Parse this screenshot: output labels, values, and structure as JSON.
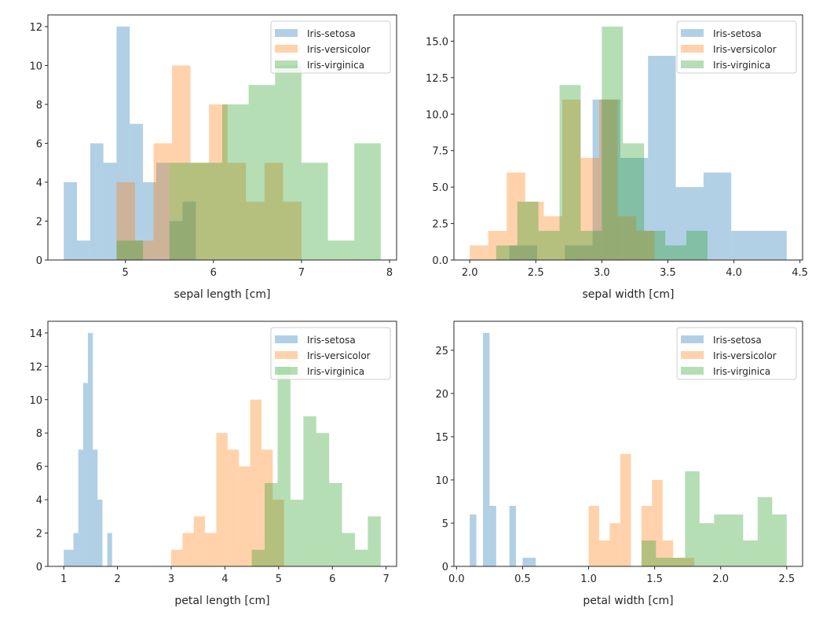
{
  "figure": {
    "bar_alpha": 0.35,
    "series_colors": {
      "Iris-setosa": "#1f77b4",
      "Iris-versicolor": "#ff7f0e",
      "Iris-virginica": "#2ca02c"
    }
  },
  "chart_data": [
    {
      "type": "bar",
      "subtype": "histogram",
      "title": "",
      "xlabel": "sepal length [cm]",
      "ylabel": "",
      "xlim": [
        4.12,
        8.08
      ],
      "ylim": [
        0,
        12.6
      ],
      "xticks": [
        5,
        6,
        7,
        8
      ],
      "xtick_labels": [
        "5",
        "6",
        "7",
        "8"
      ],
      "yticks": [
        0,
        2,
        4,
        6,
        8,
        10,
        12
      ],
      "ytick_labels": [
        "0",
        "2",
        "4",
        "6",
        "8",
        "10",
        "12"
      ],
      "grid": false,
      "legend": "top-right",
      "series": [
        {
          "name": "Iris-setosa",
          "bin_start": 4.3,
          "bin_end": 5.8,
          "counts": [
            4,
            1,
            6,
            5,
            12,
            7,
            4,
            5,
            2,
            3
          ]
        },
        {
          "name": "Iris-versicolor",
          "bin_start": 4.9,
          "bin_end": 7.0,
          "counts": [
            4,
            1,
            6,
            10,
            5,
            8,
            5,
            3,
            5,
            3
          ]
        },
        {
          "name": "Iris-virginica",
          "bin_start": 4.9,
          "bin_end": 7.9,
          "counts": [
            1,
            0,
            5,
            5,
            8,
            9,
            10,
            5,
            1,
            6
          ]
        }
      ]
    },
    {
      "type": "bar",
      "subtype": "histogram",
      "title": "",
      "xlabel": "sepal width [cm]",
      "ylabel": "",
      "xlim": [
        1.88,
        4.52
      ],
      "ylim": [
        0,
        16.8
      ],
      "xticks": [
        2.0,
        2.5,
        3.0,
        3.5,
        4.0,
        4.5
      ],
      "xtick_labels": [
        "2.0",
        "2.5",
        "3.0",
        "3.5",
        "4.0",
        "4.5"
      ],
      "yticks": [
        0,
        2.5,
        5,
        7.5,
        10,
        12.5,
        15
      ],
      "ytick_labels": [
        "0.0",
        "2.5",
        "5.0",
        "7.5",
        "10.0",
        "12.5",
        "15.0"
      ],
      "grid": false,
      "legend": "top-right",
      "series": [
        {
          "name": "Iris-setosa",
          "bin_start": 2.3,
          "bin_end": 4.4,
          "counts": [
            1,
            0,
            1,
            11,
            7,
            14,
            5,
            6,
            2,
            2
          ]
        },
        {
          "name": "Iris-versicolor",
          "bin_start": 2.0,
          "bin_end": 3.4,
          "counts": [
            1,
            2,
            6,
            4,
            3,
            11,
            7,
            11,
            3,
            2
          ]
        },
        {
          "name": "Iris-virginica",
          "bin_start": 2.2,
          "bin_end": 3.8,
          "counts": [
            1,
            4,
            2,
            12,
            2,
            16,
            8,
            2,
            1,
            2
          ]
        }
      ]
    },
    {
      "type": "bar",
      "subtype": "histogram",
      "title": "",
      "xlabel": "petal length [cm]",
      "ylabel": "",
      "xlim": [
        0.705,
        7.195
      ],
      "ylim": [
        0,
        14.7
      ],
      "xticks": [
        1,
        2,
        3,
        4,
        5,
        6,
        7
      ],
      "xtick_labels": [
        "1",
        "2",
        "3",
        "4",
        "5",
        "6",
        "7"
      ],
      "yticks": [
        0,
        2,
        4,
        6,
        8,
        10,
        12,
        14
      ],
      "ytick_labels": [
        "0",
        "2",
        "4",
        "6",
        "8",
        "10",
        "12",
        "14"
      ],
      "grid": false,
      "legend": "top-right",
      "series": [
        {
          "name": "Iris-setosa",
          "bin_start": 1.0,
          "bin_end": 1.9,
          "counts": [
            1,
            1,
            2,
            7,
            11,
            14,
            7,
            4,
            0,
            2
          ]
        },
        {
          "name": "Iris-versicolor",
          "bin_start": 3.0,
          "bin_end": 5.1,
          "counts": [
            1,
            2,
            3,
            2,
            8,
            7,
            6,
            10,
            7,
            4
          ]
        },
        {
          "name": "Iris-virginica",
          "bin_start": 4.5,
          "bin_end": 6.9,
          "counts": [
            1,
            5,
            12,
            4,
            9,
            8,
            5,
            2,
            1,
            3
          ]
        }
      ]
    },
    {
      "type": "bar",
      "subtype": "histogram",
      "title": "",
      "xlabel": "petal width [cm]",
      "ylabel": "",
      "xlim": [
        -0.02,
        2.62
      ],
      "ylim": [
        0,
        28.35
      ],
      "xticks": [
        0.0,
        0.5,
        1.0,
        1.5,
        2.0,
        2.5
      ],
      "xtick_labels": [
        "0.0",
        "0.5",
        "1.0",
        "1.5",
        "2.0",
        "2.5"
      ],
      "yticks": [
        0,
        5,
        10,
        15,
        20,
        25
      ],
      "ytick_labels": [
        "0",
        "5",
        "10",
        "15",
        "20",
        "25"
      ],
      "grid": false,
      "legend": "top-right",
      "series": [
        {
          "name": "Iris-setosa",
          "bin_start": 0.1,
          "bin_end": 0.6,
          "counts": [
            6,
            0,
            27,
            7,
            0,
            0,
            7,
            0,
            1,
            1
          ]
        },
        {
          "name": "Iris-versicolor",
          "bin_start": 1.0,
          "bin_end": 1.8,
          "counts": [
            7,
            3,
            5,
            13,
            0,
            7,
            10,
            3,
            1,
            1
          ]
        },
        {
          "name": "Iris-virginica",
          "bin_start": 1.4,
          "bin_end": 2.5,
          "counts": [
            3,
            1,
            1,
            11,
            5,
            6,
            6,
            3,
            8,
            6
          ]
        }
      ]
    }
  ]
}
